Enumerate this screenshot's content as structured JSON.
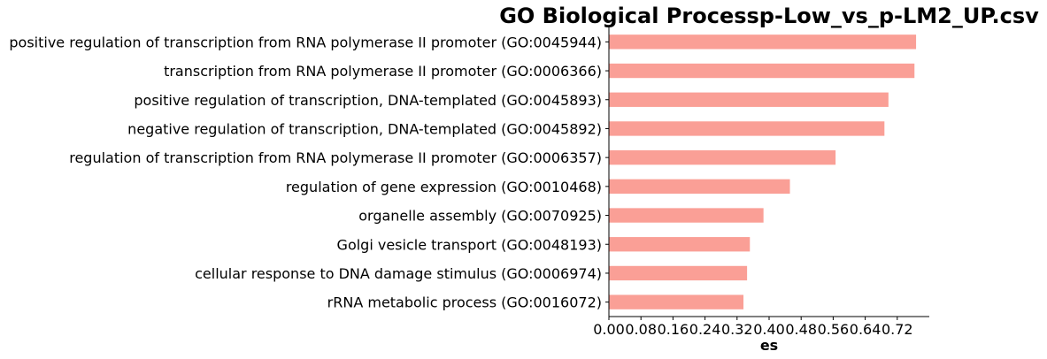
{
  "chart_data": {
    "type": "bar",
    "orientation": "horizontal",
    "title": "GO Biological Processp-Low_vs_p-LM2_UP.csv",
    "xlabel": "es",
    "ylabel": "",
    "bar_color": "#fa9f96",
    "xlim": [
      0,
      0.8
    ],
    "xticks": [
      "0.00",
      "0.08",
      "0.16",
      "0.24",
      "0.32",
      "0.40",
      "0.48",
      "0.56",
      "0.64",
      "0.72"
    ],
    "categories": [
      "positive regulation of transcription from RNA polymerase II promoter (GO:0045944)",
      "transcription from RNA polymerase II promoter (GO:0006366)",
      "positive regulation of transcription, DNA-templated (GO:0045893)",
      "negative regulation of transcription, DNA-templated (GO:0045892)",
      "regulation of transcription from RNA polymerase II promoter (GO:0006357)",
      "regulation of gene expression (GO:0010468)",
      "organelle assembly (GO:0070925)",
      "Golgi vesicle transport (GO:0048193)",
      "cellular response to DNA damage stimulus (GO:0006974)",
      "rRNA metabolic process (GO:0016072)"
    ],
    "values": [
      0.767,
      0.763,
      0.698,
      0.688,
      0.566,
      0.452,
      0.386,
      0.352,
      0.345,
      0.336
    ],
    "grid": false,
    "legend": "none"
  }
}
